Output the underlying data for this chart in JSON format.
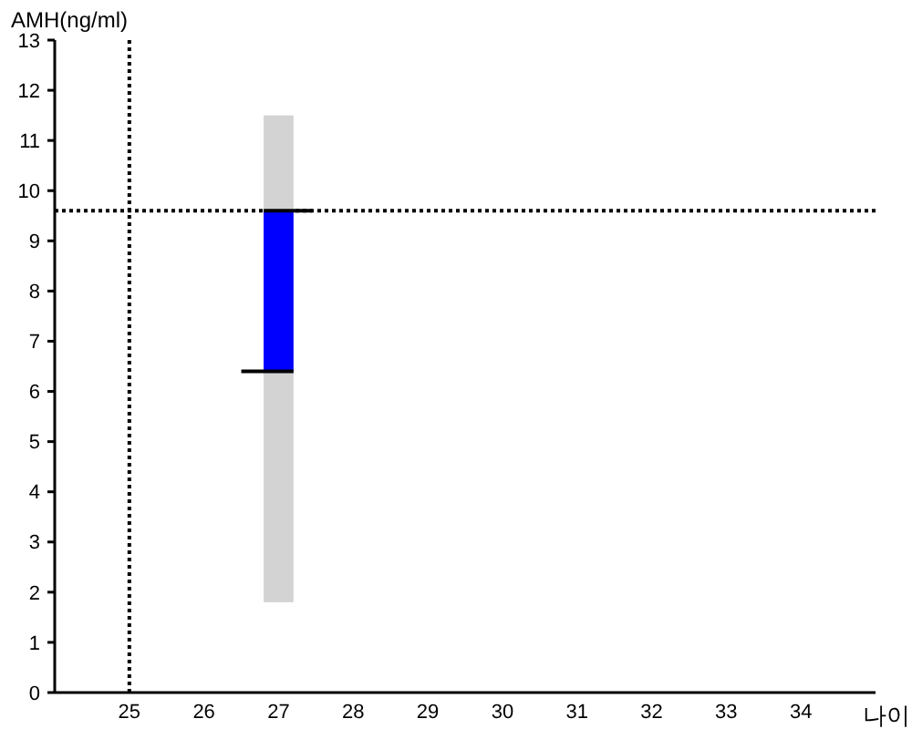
{
  "chart_data": {
    "type": "bar",
    "ylabel": "AMH(ng/ml)",
    "xlabel": "나이",
    "xlim": [
      24,
      35
    ],
    "xticks": [
      25,
      26,
      27,
      28,
      29,
      30,
      31,
      32,
      33,
      34
    ],
    "ylim": [
      0,
      13
    ],
    "yticks": [
      0,
      1,
      2,
      3,
      4,
      5,
      6,
      7,
      8,
      9,
      10,
      11,
      12,
      13
    ],
    "series": [
      {
        "color": "#d3d3d3",
        "x": [
          27
        ],
        "base": [
          1.8
        ],
        "values": [
          9.7
        ]
      },
      {
        "color": "#0000ff",
        "x": [
          27
        ],
        "base": [
          6.4
        ],
        "values": [
          3.2
        ]
      },
      {
        "type": "line",
        "color": "#000000",
        "x": [
          26.5,
          27.2
        ],
        "values": [
          6.4,
          6.4
        ]
      },
      {
        "type": "line",
        "color": "#000000",
        "x": [
          26.8,
          27.45
        ],
        "values": [
          9.6,
          9.6
        ]
      }
    ],
    "ref_lines": [
      {
        "axis": "x",
        "value": 25,
        "color": "#000000",
        "line_style": "dotted"
      },
      {
        "axis": "y",
        "value": 9.6,
        "color": "#000000",
        "line_style": "dotted"
      }
    ]
  }
}
